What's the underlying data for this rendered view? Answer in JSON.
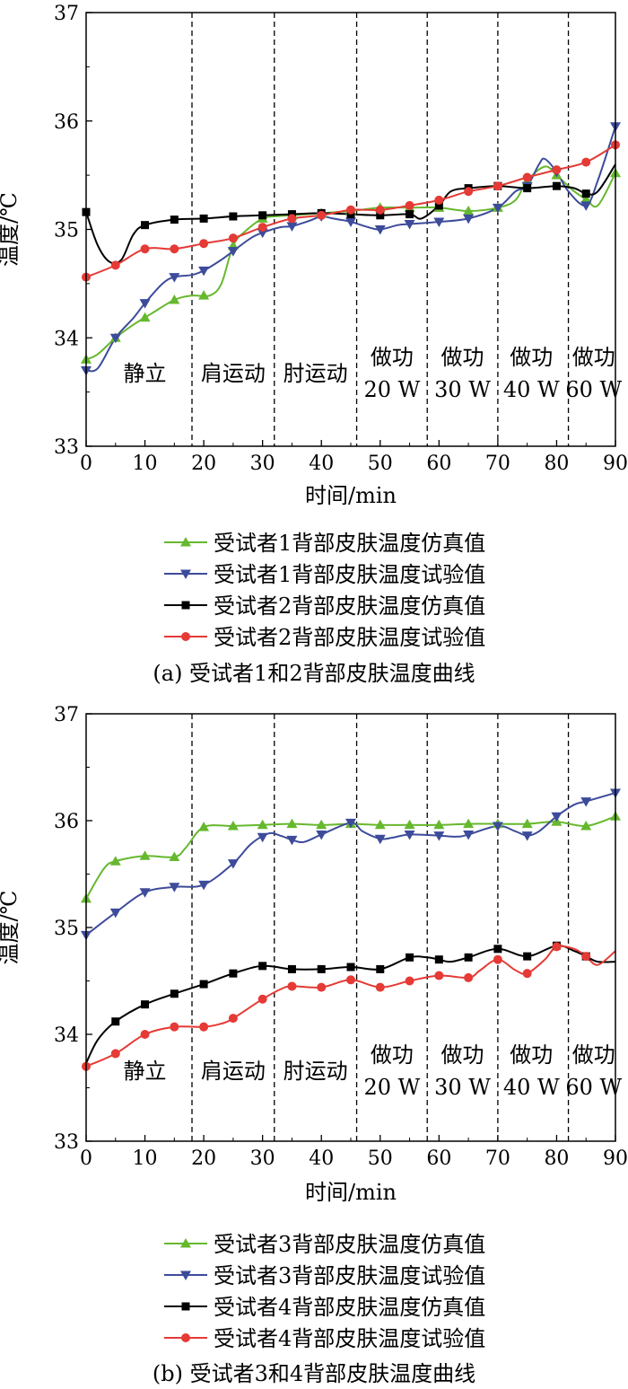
{
  "chart_data": [
    {
      "type": "line",
      "caption": "(a) 受试者1和2背部皮肤温度曲线",
      "xlabel": "时间/min",
      "ylabel": "温度/℃",
      "xlim": [
        0,
        90
      ],
      "ylim": [
        33,
        37
      ],
      "xticks": [
        0,
        10,
        20,
        30,
        40,
        50,
        60,
        70,
        80,
        90
      ],
      "yticks": [
        33,
        34,
        35,
        36,
        37
      ],
      "phase_lines": [
        18,
        32,
        46,
        58,
        70,
        82
      ],
      "phase_labels": [
        {
          "x": 10,
          "lines": [
            "静立"
          ]
        },
        {
          "x": 25,
          "lines": [
            "肩运动"
          ]
        },
        {
          "x": 39,
          "lines": [
            "肘运动"
          ]
        },
        {
          "x": 52,
          "lines": [
            "做功",
            "20 W"
          ]
        },
        {
          "x": 64,
          "lines": [
            "做功",
            "30 W"
          ]
        },
        {
          "x": 75.7,
          "lines": [
            "做功",
            "40 W"
          ]
        },
        {
          "x": 86.3,
          "lines": [
            "做功",
            "60 W"
          ]
        }
      ],
      "legend_position": "below",
      "series": [
        {
          "name": "受试者1背部皮肤温度仿真值",
          "color": "#66b82e",
          "marker": "triangle-up",
          "x": [
            0,
            2,
            5,
            8,
            11,
            15,
            18,
            21,
            23,
            25,
            27,
            30,
            32,
            35,
            40,
            45,
            50,
            55,
            60,
            65,
            70,
            73,
            75,
            78,
            80,
            83,
            85,
            87,
            90
          ],
          "y": [
            33.8,
            33.85,
            34.0,
            34.12,
            34.22,
            34.35,
            34.39,
            34.39,
            34.5,
            34.85,
            34.98,
            35.1,
            35.12,
            35.13,
            35.15,
            35.17,
            35.2,
            35.2,
            35.2,
            35.17,
            35.2,
            35.27,
            35.45,
            35.58,
            35.5,
            35.35,
            35.28,
            35.22,
            35.52
          ],
          "markers_x": [
            0,
            5,
            10,
            15,
            20,
            25,
            30,
            35,
            40,
            45,
            50,
            55,
            60,
            65,
            70,
            75,
            80,
            85,
            90
          ]
        },
        {
          "name": "受试者1背部皮肤温度试验值",
          "color": "#3d4b9b",
          "marker": "triangle-down",
          "x": [
            0,
            2,
            5,
            8,
            10,
            13,
            15,
            18,
            20,
            23,
            25,
            28,
            30,
            33,
            35,
            38,
            40,
            42,
            45,
            48,
            50,
            53,
            55,
            60,
            65,
            70,
            73,
            75,
            77,
            78,
            80,
            82,
            85,
            87,
            90
          ],
          "y": [
            33.7,
            33.72,
            34.0,
            34.18,
            34.32,
            34.5,
            34.56,
            34.58,
            34.62,
            34.72,
            34.8,
            34.92,
            34.97,
            35.02,
            35.03,
            35.08,
            35.12,
            35.1,
            35.07,
            35.02,
            35.0,
            35.04,
            35.05,
            35.07,
            35.1,
            35.2,
            35.35,
            35.4,
            35.6,
            35.65,
            35.53,
            35.35,
            35.22,
            35.45,
            35.95
          ],
          "markers_x": [
            0,
            5,
            10,
            15,
            20,
            25,
            30,
            35,
            40,
            45,
            50,
            55,
            60,
            65,
            70,
            75,
            80,
            85,
            90
          ]
        },
        {
          "name": "受试者2背部皮肤温度仿真值",
          "color": "#000000",
          "marker": "square",
          "x": [
            0,
            2,
            4,
            6,
            8,
            10,
            15,
            20,
            25,
            30,
            35,
            40,
            45,
            50,
            55,
            57,
            60,
            62,
            65,
            70,
            75,
            80,
            83,
            85,
            87,
            90
          ],
          "y": [
            35.16,
            34.85,
            34.7,
            34.72,
            34.95,
            35.04,
            35.09,
            35.1,
            35.12,
            35.13,
            35.14,
            35.15,
            35.14,
            35.13,
            35.14,
            35.1,
            35.22,
            35.35,
            35.38,
            35.4,
            35.38,
            35.4,
            35.38,
            35.33,
            35.35,
            35.6
          ],
          "markers_x": [
            0,
            10,
            15,
            20,
            25,
            30,
            35,
            40,
            45,
            50,
            55,
            60,
            65,
            70,
            75,
            80,
            85
          ]
        },
        {
          "name": "受试者2背部皮肤温度试验值",
          "color": "#e53a35",
          "marker": "circle",
          "x": [
            0,
            5,
            10,
            15,
            20,
            25,
            30,
            35,
            40,
            45,
            50,
            55,
            60,
            65,
            70,
            75,
            80,
            85,
            90
          ],
          "y": [
            34.56,
            34.67,
            34.82,
            34.82,
            34.87,
            34.92,
            35.02,
            35.1,
            35.13,
            35.18,
            35.18,
            35.22,
            35.27,
            35.35,
            35.4,
            35.48,
            35.55,
            35.62,
            35.78
          ],
          "markers_x": [
            0,
            5,
            10,
            15,
            20,
            25,
            30,
            35,
            40,
            45,
            50,
            55,
            60,
            65,
            70,
            75,
            80,
            85,
            90
          ]
        }
      ]
    },
    {
      "type": "line",
      "caption": "(b) 受试者3和4背部皮肤温度曲线",
      "xlabel": "时间/min",
      "ylabel": "温度/℃",
      "xlim": [
        0,
        90
      ],
      "ylim": [
        33,
        37
      ],
      "xticks": [
        0,
        10,
        20,
        30,
        40,
        50,
        60,
        70,
        80,
        90
      ],
      "yticks": [
        33,
        34,
        35,
        36,
        37
      ],
      "phase_lines": [
        18,
        32,
        46,
        58,
        70,
        82
      ],
      "phase_labels": [
        {
          "x": 10,
          "lines": [
            "静立"
          ]
        },
        {
          "x": 25,
          "lines": [
            "肩运动"
          ]
        },
        {
          "x": 39,
          "lines": [
            "肘运动"
          ]
        },
        {
          "x": 52,
          "lines": [
            "做功",
            "20 W"
          ]
        },
        {
          "x": 64,
          "lines": [
            "做功",
            "30 W"
          ]
        },
        {
          "x": 75.7,
          "lines": [
            "做功",
            "40 W"
          ]
        },
        {
          "x": 86.3,
          "lines": [
            "做功",
            "60 W"
          ]
        }
      ],
      "legend_position": "below",
      "series": [
        {
          "name": "受试者3背部皮肤温度仿真值",
          "color": "#66b82e",
          "marker": "triangle-up",
          "x": [
            0,
            3,
            5,
            10,
            15,
            17,
            20,
            25,
            30,
            35,
            40,
            45,
            50,
            55,
            60,
            65,
            70,
            75,
            80,
            85,
            90
          ],
          "y": [
            35.27,
            35.55,
            35.62,
            35.67,
            35.66,
            35.75,
            35.94,
            35.95,
            35.96,
            35.97,
            35.96,
            35.97,
            35.96,
            35.96,
            35.96,
            35.97,
            35.97,
            35.97,
            35.99,
            35.95,
            36.04
          ],
          "markers_x": [
            0,
            5,
            10,
            15,
            20,
            25,
            30,
            35,
            40,
            45,
            50,
            55,
            60,
            65,
            70,
            75,
            80,
            85,
            90
          ]
        },
        {
          "name": "受试者3背部皮肤温度试验值",
          "color": "#3d4b9b",
          "marker": "triangle-down",
          "x": [
            0,
            5,
            10,
            15,
            20,
            25,
            28,
            31,
            33,
            35,
            37,
            40,
            45,
            47,
            50,
            52,
            55,
            60,
            63,
            65,
            70,
            73,
            75,
            77,
            80,
            83,
            85,
            90
          ],
          "y": [
            34.93,
            35.14,
            35.33,
            35.38,
            35.4,
            35.6,
            35.78,
            35.88,
            35.86,
            35.82,
            35.8,
            35.87,
            35.98,
            35.9,
            35.83,
            35.84,
            35.87,
            35.86,
            35.85,
            35.87,
            35.95,
            35.9,
            35.86,
            35.9,
            36.04,
            36.15,
            36.18,
            36.26
          ],
          "markers_x": [
            0,
            5,
            10,
            15,
            20,
            25,
            30,
            35,
            40,
            45,
            50,
            55,
            60,
            65,
            70,
            75,
            80,
            85,
            90
          ]
        },
        {
          "name": "受试者4背部皮肤温度仿真值",
          "color": "#000000",
          "marker": "square",
          "x": [
            0,
            2,
            5,
            10,
            15,
            20,
            25,
            30,
            35,
            40,
            45,
            50,
            55,
            58,
            60,
            62,
            65,
            70,
            75,
            80,
            83,
            85,
            87,
            90
          ],
          "y": [
            33.73,
            33.95,
            34.12,
            34.28,
            34.38,
            34.47,
            34.57,
            34.64,
            34.61,
            34.61,
            34.63,
            34.61,
            34.72,
            34.72,
            34.7,
            34.68,
            34.72,
            34.8,
            34.73,
            34.83,
            34.78,
            34.73,
            34.68,
            34.68
          ],
          "markers_x": [
            5,
            10,
            15,
            20,
            25,
            30,
            35,
            40,
            45,
            50,
            55,
            60,
            65,
            70,
            75,
            80,
            85
          ]
        },
        {
          "name": "受试者4背部皮肤温度试验值",
          "color": "#e53a35",
          "marker": "circle",
          "x": [
            0,
            5,
            10,
            15,
            20,
            23,
            25,
            30,
            33,
            35,
            40,
            45,
            50,
            55,
            60,
            65,
            67,
            70,
            73,
            75,
            78,
            80,
            83,
            85,
            87,
            90
          ],
          "y": [
            33.7,
            33.82,
            34.0,
            34.07,
            34.07,
            34.1,
            34.15,
            34.33,
            34.42,
            34.45,
            34.44,
            34.51,
            34.44,
            34.5,
            34.55,
            34.53,
            34.6,
            34.7,
            34.6,
            34.57,
            34.7,
            34.82,
            34.8,
            34.73,
            34.65,
            34.78
          ],
          "markers_x": [
            0,
            5,
            10,
            15,
            20,
            25,
            30,
            35,
            40,
            45,
            50,
            55,
            60,
            65,
            70,
            75,
            80,
            85
          ]
        }
      ]
    }
  ]
}
